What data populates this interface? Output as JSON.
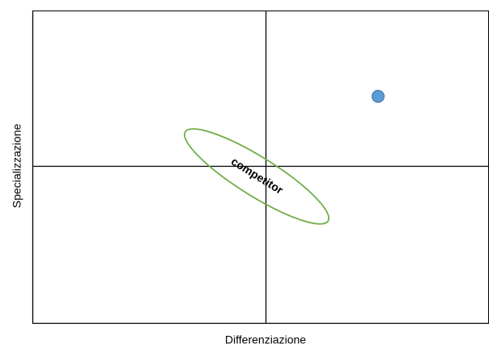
{
  "axes": {
    "x_label": "Differenziazione",
    "y_label": "Specializzazione"
  },
  "annotation": {
    "label": "competitor"
  }
}
